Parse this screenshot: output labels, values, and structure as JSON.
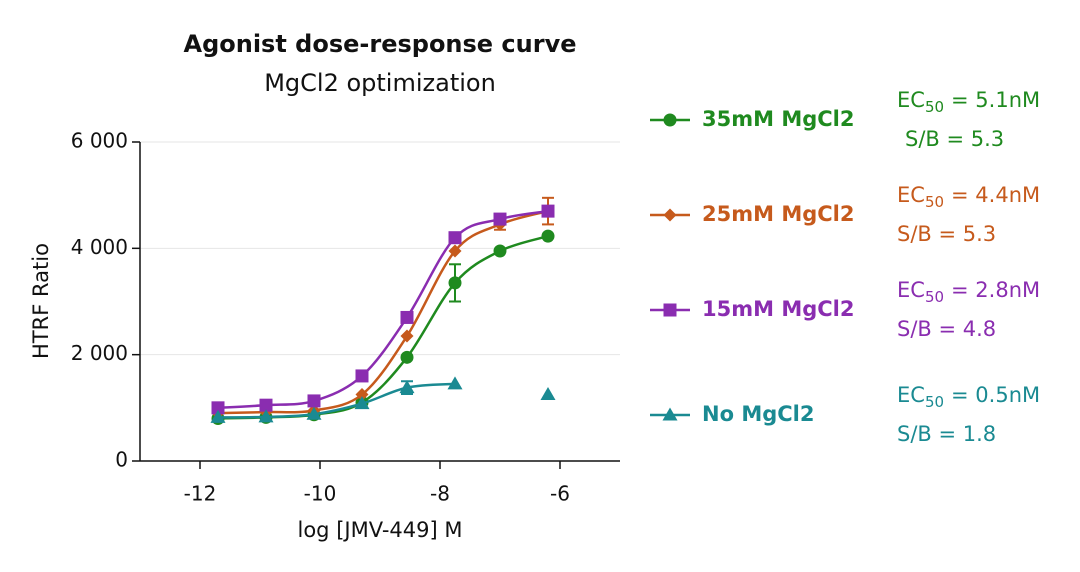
{
  "chart_data": {
    "type": "line",
    "title": "Agonist dose-response curve",
    "subtitle": "MgCl2 optimization",
    "x_label": "log [JMV-449] M",
    "y_label": "HTRF Ratio",
    "ec50_symbol": "EC",
    "ec50_subscript": "50",
    "x": [
      -11.7,
      -10.9,
      -10.1,
      -9.3,
      -8.55,
      -7.75,
      -7.0,
      -6.2
    ],
    "xlim": [
      -13,
      -5
    ],
    "xticks": [
      -12,
      -10,
      -8,
      -6
    ],
    "ylim": [
      0,
      6000
    ],
    "yticks": [
      0,
      {
        "value": 2000,
        "label": "2 000"
      },
      {
        "value": 4000,
        "label": "4 000"
      },
      {
        "value": 6000,
        "label": "6 000"
      }
    ],
    "grid": true,
    "series": [
      {
        "name": "35mM MgCl2",
        "color": "#1f8a1f",
        "marker": "circle",
        "values": [
          800,
          820,
          870,
          1100,
          1950,
          3350,
          3950,
          4230
        ],
        "errors": [
          null,
          null,
          null,
          null,
          null,
          350,
          null,
          null
        ],
        "ec50": "= 5.1nM",
        "sb": "S/B = 5.3"
      },
      {
        "name": "25mM MgCl2",
        "color": "#c65a1c",
        "marker": "diamond",
        "values": [
          900,
          920,
          950,
          1250,
          2350,
          3950,
          4450,
          4700
        ],
        "errors": [
          null,
          null,
          null,
          null,
          null,
          null,
          100,
          250
        ],
        "ec50": "= 4.4nM",
        "sb": "S/B = 5.3"
      },
      {
        "name": "15mM MgCl2",
        "color": "#8a2db0",
        "marker": "square",
        "values": [
          1000,
          1050,
          1130,
          1600,
          2700,
          4200,
          4550,
          4700
        ],
        "errors": [
          null,
          null,
          null,
          null,
          null,
          null,
          null,
          null
        ],
        "ec50": "= 2.8nM",
        "sb": "S/B = 4.8"
      },
      {
        "name": "No MgCl2",
        "color": "#1a8a92",
        "marker": "triangle",
        "values": [
          820,
          830,
          880,
          1080,
          1380,
          1450,
          null,
          1250
        ],
        "errors": [
          null,
          null,
          null,
          null,
          120,
          null,
          null,
          null
        ],
        "ec50": "= 0.5nM",
        "sb": "S/B = 1.8"
      }
    ]
  }
}
